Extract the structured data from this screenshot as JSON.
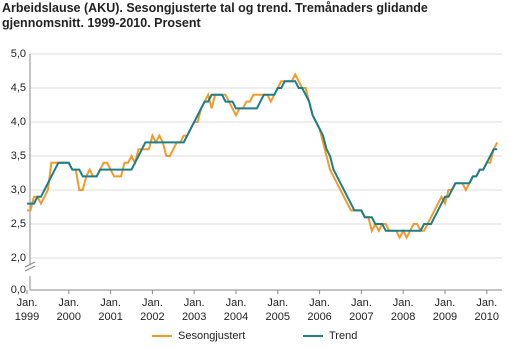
{
  "chart_data": {
    "type": "line",
    "title": "Arbeidslause (AKU).  Sesongjusterte tal og trend. Tremånaders glidande gjennomsnitt. 1999-2010. Prosent",
    "categories": [
      "Jan. 1999",
      null,
      null,
      null,
      null,
      null,
      null,
      null,
      null,
      null,
      null,
      null,
      "Jan. 2000",
      null,
      null,
      null,
      null,
      null,
      null,
      null,
      null,
      null,
      null,
      null,
      "Jan. 2001",
      null,
      null,
      null,
      null,
      null,
      null,
      null,
      null,
      null,
      null,
      null,
      "Jan. 2002",
      null,
      null,
      null,
      null,
      null,
      null,
      null,
      null,
      null,
      null,
      null,
      "Jan. 2003",
      null,
      null,
      null,
      null,
      null,
      null,
      null,
      null,
      null,
      null,
      null,
      "Jan. 2004",
      null,
      null,
      null,
      null,
      null,
      null,
      null,
      null,
      null,
      null,
      null,
      "Jan. 2005",
      null,
      null,
      null,
      null,
      null,
      null,
      null,
      null,
      null,
      null,
      null,
      "Jan. 2006",
      null,
      null,
      null,
      null,
      null,
      null,
      null,
      null,
      null,
      null,
      null,
      "Jan. 2007",
      null,
      null,
      null,
      null,
      null,
      null,
      null,
      null,
      null,
      null,
      null,
      "Jan. 2008",
      null,
      null,
      null,
      null,
      null,
      null,
      null,
      null,
      null,
      null,
      null,
      "Jan. 2009",
      null,
      null,
      null,
      null,
      null,
      null,
      null,
      null,
      null,
      null,
      null,
      "Jan. 2010",
      null,
      null,
      null
    ],
    "series": [
      {
        "name": "Sesongjustert",
        "color": "#f39a2b",
        "values": [
          2.7,
          2.7,
          2.9,
          2.9,
          2.8,
          2.9,
          3.0,
          3.4,
          3.4,
          3.4,
          3.4,
          3.4,
          3.4,
          3.3,
          3.3,
          3.0,
          3.0,
          3.2,
          3.3,
          3.2,
          3.2,
          3.3,
          3.4,
          3.4,
          3.3,
          3.2,
          3.2,
          3.2,
          3.4,
          3.4,
          3.5,
          3.4,
          3.6,
          3.6,
          3.6,
          3.6,
          3.8,
          3.7,
          3.8,
          3.7,
          3.5,
          3.5,
          3.6,
          3.7,
          3.7,
          3.8,
          3.8,
          3.9,
          4.0,
          4.0,
          4.2,
          4.3,
          4.4,
          4.2,
          4.4,
          4.4,
          4.4,
          4.4,
          4.3,
          4.2,
          4.1,
          4.2,
          4.2,
          4.3,
          4.3,
          4.4,
          4.4,
          4.4,
          4.4,
          4.4,
          4.3,
          4.4,
          4.5,
          4.6,
          4.6,
          4.6,
          4.6,
          4.7,
          4.6,
          4.5,
          4.5,
          4.3,
          4.1,
          4.0,
          3.9,
          3.7,
          3.5,
          3.3,
          3.2,
          3.1,
          3.0,
          2.9,
          2.8,
          2.7,
          2.7,
          2.7,
          2.7,
          2.6,
          2.6,
          2.4,
          2.5,
          2.4,
          2.5,
          2.5,
          2.4,
          2.4,
          2.4,
          2.3,
          2.4,
          2.3,
          2.4,
          2.5,
          2.5,
          2.4,
          2.4,
          2.5,
          2.6,
          2.7,
          2.8,
          2.9,
          2.8,
          3.0,
          3.0,
          3.1,
          3.1,
          3.1,
          3.0,
          3.1,
          3.2,
          3.2,
          3.3,
          3.3,
          3.4,
          3.4,
          3.6,
          3.7
        ]
      },
      {
        "name": "Trend",
        "color": "#1a7f8a",
        "values": [
          2.8,
          2.8,
          2.8,
          2.9,
          2.9,
          3.0,
          3.1,
          3.2,
          3.3,
          3.4,
          3.4,
          3.4,
          3.4,
          3.3,
          3.3,
          3.3,
          3.2,
          3.2,
          3.2,
          3.2,
          3.2,
          3.3,
          3.3,
          3.3,
          3.3,
          3.3,
          3.3,
          3.3,
          3.3,
          3.3,
          3.3,
          3.4,
          3.5,
          3.6,
          3.7,
          3.7,
          3.7,
          3.7,
          3.7,
          3.7,
          3.7,
          3.7,
          3.7,
          3.7,
          3.7,
          3.7,
          3.8,
          3.9,
          4.0,
          4.1,
          4.2,
          4.3,
          4.3,
          4.4,
          4.4,
          4.4,
          4.4,
          4.3,
          4.3,
          4.3,
          4.2,
          4.2,
          4.2,
          4.2,
          4.2,
          4.2,
          4.2,
          4.3,
          4.4,
          4.4,
          4.4,
          4.4,
          4.5,
          4.5,
          4.6,
          4.6,
          4.6,
          4.6,
          4.5,
          4.5,
          4.4,
          4.3,
          4.1,
          4.0,
          3.9,
          3.8,
          3.6,
          3.5,
          3.3,
          3.2,
          3.1,
          3.0,
          2.9,
          2.8,
          2.7,
          2.7,
          2.7,
          2.6,
          2.6,
          2.6,
          2.5,
          2.5,
          2.5,
          2.4,
          2.4,
          2.4,
          2.4,
          2.4,
          2.4,
          2.4,
          2.4,
          2.4,
          2.4,
          2.4,
          2.5,
          2.5,
          2.5,
          2.6,
          2.7,
          2.8,
          2.9,
          2.9,
          3.0,
          3.1,
          3.1,
          3.1,
          3.1,
          3.1,
          3.2,
          3.2,
          3.3,
          3.3,
          3.4,
          3.5,
          3.6,
          3.6
        ]
      }
    ],
    "ylim": [
      0,
      5
    ],
    "y_break": [
      0,
      2
    ],
    "yticks": [
      {
        "value": 0,
        "label": "0,0"
      },
      {
        "value": 2,
        "label": "2,0"
      },
      {
        "value": 2.5,
        "label": "2,5"
      },
      {
        "value": 3,
        "label": "3,0"
      },
      {
        "value": 3.5,
        "label": "3,5"
      },
      {
        "value": 4,
        "label": "4,0"
      },
      {
        "value": 4.5,
        "label": "4,5"
      },
      {
        "value": 5,
        "label": "5,0"
      }
    ],
    "grid": true,
    "legend": "bottom"
  }
}
